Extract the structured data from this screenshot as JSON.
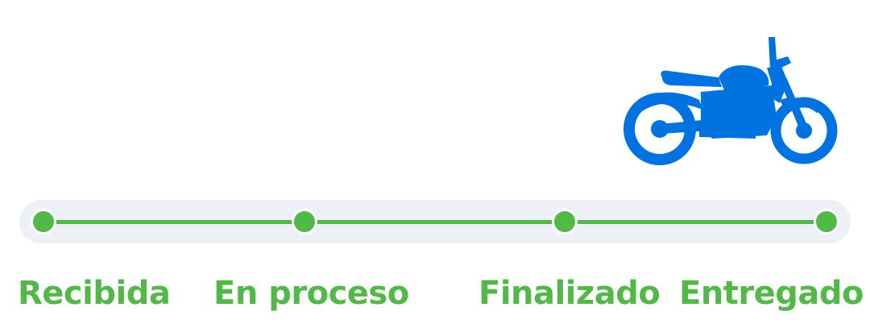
{
  "tracker": {
    "vehicle_icon": "motorcycle-icon",
    "accent_color": "#52b848",
    "vehicle_color": "#0073e0",
    "track_color": "#edf1f5",
    "current_step": 4,
    "steps": [
      {
        "label": "Recibida"
      },
      {
        "label": "En proceso"
      },
      {
        "label": "Finalizado"
      },
      {
        "label": "Entregado"
      }
    ]
  }
}
